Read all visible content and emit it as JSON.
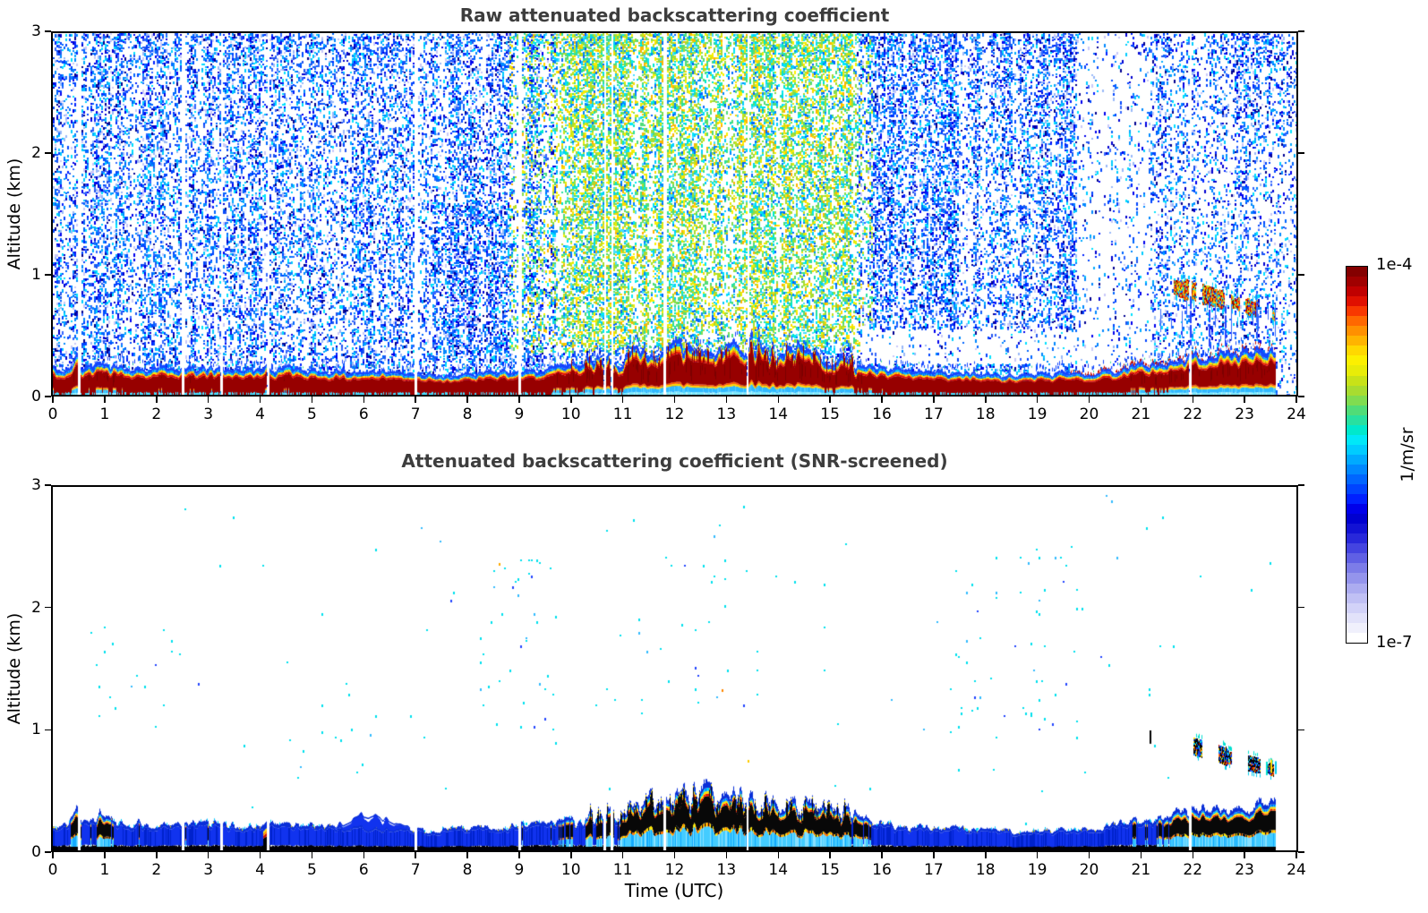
{
  "axes": {
    "x": {
      "label": "Time (UTC)",
      "ticks": [
        0,
        1,
        2,
        3,
        4,
        5,
        6,
        7,
        8,
        9,
        10,
        11,
        12,
        13,
        14,
        15,
        16,
        17,
        18,
        19,
        20,
        21,
        22,
        23,
        24
      ],
      "range": [
        0,
        24
      ]
    },
    "y": {
      "label": "Altitude (km)",
      "ticks": [
        0,
        1,
        2,
        3
      ],
      "range": [
        0,
        3
      ]
    }
  },
  "colorbar": {
    "top_label": "1e-4",
    "bottom_label": "1e-7",
    "unit": "1/m/sr",
    "scale": "log",
    "palette": [
      "#ffffff",
      "#f0f0fc",
      "#e2e2fa",
      "#d2d2f8",
      "#c0c0f4",
      "#acacf0",
      "#9494ec",
      "#7c7ce8",
      "#6060e4",
      "#4444e0",
      "#2828da",
      "#1212d4",
      "#0000d0",
      "#0000ea",
      "#0020ff",
      "#0044ff",
      "#0066ff",
      "#0088ff",
      "#00aaff",
      "#00ccff",
      "#00e8f8",
      "#00e8cc",
      "#28e0a0",
      "#50dc78",
      "#80dc50",
      "#a8dc30",
      "#c8e218",
      "#e8ec08",
      "#fcf000",
      "#ffd800",
      "#ffb400",
      "#ff9000",
      "#ff6800",
      "#f83800",
      "#e01000",
      "#c00000",
      "#a00000",
      "#840000"
    ]
  },
  "chart_data": [
    {
      "type": "heatmap",
      "title": "Raw attenuated backscattering coefficient",
      "xlabel": "Time (UTC)",
      "ylabel": "Altitude (km)",
      "xlim": [
        0,
        24
      ],
      "ylim": [
        0,
        3
      ],
      "value_min": "1e-7",
      "value_max": "1e-4",
      "unit": "1/m/sr",
      "data_end_hour": 23.6,
      "gap_hours": [
        0.5,
        2.5,
        3.25,
        4.15,
        7.0,
        9.0,
        10.65,
        10.78,
        11.8,
        13.4,
        21.95
      ],
      "boundary_layer_top_km": {
        "hours": [
          0,
          0.3,
          0.6,
          1,
          1.5,
          2,
          2.5,
          3,
          3.5,
          4,
          4.5,
          5,
          5.5,
          6,
          6.5,
          7,
          7.5,
          8,
          8.5,
          9,
          9.5,
          10,
          10.5,
          11,
          11.5,
          12,
          12.5,
          13,
          13.3,
          13.6,
          14,
          14.5,
          15,
          15.5,
          16,
          16.5,
          17,
          17.5,
          18,
          18.5,
          19,
          19.5,
          20,
          20.5,
          21,
          21.5,
          22,
          22.5,
          23,
          23.6
        ],
        "values": [
          0.2,
          0.21,
          0.2,
          0.22,
          0.19,
          0.2,
          0.21,
          0.2,
          0.19,
          0.19,
          0.21,
          0.18,
          0.18,
          0.19,
          0.18,
          0.16,
          0.16,
          0.16,
          0.17,
          0.18,
          0.2,
          0.24,
          0.27,
          0.31,
          0.36,
          0.38,
          0.39,
          0.41,
          0.42,
          0.39,
          0.35,
          0.33,
          0.31,
          0.27,
          0.21,
          0.18,
          0.17,
          0.16,
          0.16,
          0.15,
          0.15,
          0.16,
          0.17,
          0.2,
          0.24,
          0.27,
          0.3,
          0.31,
          0.33,
          0.35
        ]
      },
      "bumps": [
        {
          "hour": 0.45,
          "amp_km": 0.1,
          "width_h": 0.07
        },
        {
          "hour": 0.9,
          "amp_km": 0.05,
          "width_h": 0.06
        },
        {
          "hour": 1.65,
          "amp_km": 0.035,
          "width_h": 0.05
        },
        {
          "hour": 4.1,
          "amp_km": 0.06,
          "width_h": 0.06
        },
        {
          "hour": 14.3,
          "amp_km": 0.03,
          "width_h": 0.05
        }
      ],
      "cloud_layer": {
        "start_hour": 21.3,
        "end_hour": 23.6,
        "center_alt_start_km": 0.95,
        "center_alt_end_km": 0.66,
        "thickness_km": 0.14,
        "virga_hours": [
          21.95,
          22.3,
          22.62
        ]
      },
      "noise_regions": [
        {
          "t": [
            0,
            24
          ],
          "a": [
            0,
            3
          ],
          "density": 0.42,
          "palette": "blue"
        },
        {
          "t": [
            7.3,
            9.8
          ],
          "a": [
            0.3,
            1.6
          ],
          "density": 0.6,
          "palette": "blue"
        },
        {
          "t": [
            8.8,
            16.3
          ],
          "a": [
            0.35,
            3
          ],
          "density": 0.5,
          "palette": "bluegreen"
        },
        {
          "t": [
            9.7,
            15.5
          ],
          "a": [
            0.4,
            3
          ],
          "density": 0.58,
          "palette": "green"
        },
        {
          "t": [
            15.8,
            19.7
          ],
          "a": [
            0.55,
            3
          ],
          "density": 0.46,
          "palette": "blue"
        },
        {
          "t": [
            15.6,
            21.2
          ],
          "a": [
            0.28,
            0.55
          ],
          "density": 0.1,
          "palette": "blue"
        },
        {
          "t": [
            19.75,
            21.15
          ],
          "a": [
            0,
            3
          ],
          "density": 0.1,
          "palette": "blue"
        },
        {
          "t": [
            21.15,
            24
          ],
          "a": [
            0,
            3
          ],
          "density": 0.25,
          "palette": "blue"
        },
        {
          "t": [
            22.8,
            24
          ],
          "a": [
            2.2,
            3
          ],
          "density": 0.4,
          "palette": "blue"
        }
      ]
    },
    {
      "type": "heatmap",
      "title": "Attenuated backscattering coefficient (SNR-screened)",
      "xlabel": "Time (UTC)",
      "ylabel": "Altitude (km)",
      "xlim": [
        0,
        24
      ],
      "ylim": [
        0,
        3
      ],
      "value_min": "1e-7",
      "value_max": "1e-4",
      "unit": "1/m/sr",
      "data_end_hour": 23.6,
      "gap_hours": [
        0.5,
        2.5,
        3.25,
        4.15,
        7.0,
        9.0,
        10.65,
        10.78,
        11.8,
        13.4,
        21.95
      ],
      "boundary_layer_top_km": {
        "hours": [
          0,
          0.3,
          0.6,
          1,
          1.5,
          2,
          2.5,
          3,
          3.5,
          4,
          4.5,
          5,
          5.5,
          6,
          6.5,
          7,
          7.5,
          8,
          8.5,
          9,
          9.5,
          10,
          10.5,
          11,
          11.5,
          12,
          12.5,
          13,
          13.3,
          13.6,
          14,
          14.5,
          15,
          15.5,
          16,
          16.5,
          17,
          17.5,
          18,
          18.5,
          19,
          19.5,
          20,
          20.5,
          21,
          21.5,
          22,
          22.5,
          23,
          23.6
        ],
        "values": [
          0.2,
          0.21,
          0.2,
          0.22,
          0.19,
          0.2,
          0.21,
          0.2,
          0.19,
          0.19,
          0.21,
          0.18,
          0.18,
          0.19,
          0.18,
          0.16,
          0.16,
          0.16,
          0.17,
          0.18,
          0.2,
          0.24,
          0.27,
          0.31,
          0.36,
          0.38,
          0.39,
          0.41,
          0.42,
          0.39,
          0.35,
          0.33,
          0.31,
          0.27,
          0.21,
          0.18,
          0.17,
          0.16,
          0.16,
          0.15,
          0.15,
          0.16,
          0.17,
          0.2,
          0.24,
          0.27,
          0.3,
          0.31,
          0.33,
          0.35
        ]
      },
      "bumps": [
        {
          "hour": 0.45,
          "amp_km": 0.1,
          "width_h": 0.07
        },
        {
          "hour": 0.9,
          "amp_km": 0.05,
          "width_h": 0.06
        },
        {
          "hour": 1.65,
          "amp_km": 0.035,
          "width_h": 0.05
        },
        {
          "hour": 4.1,
          "amp_km": 0.06,
          "width_h": 0.06
        }
      ],
      "blue_bump": {
        "hour": 6.15,
        "amp_km": 0.1,
        "width_h": 0.5
      },
      "cloud_layer": {
        "start_hour": 21.35,
        "end_hour": 23.6,
        "center_alt_start_km": 0.95,
        "center_alt_end_km": 0.66,
        "thickness_km": 0.12,
        "lone_mark_hour": 21.17,
        "lone_mark_alt_km": 0.94
      },
      "dot_regions": [
        {
          "t": [
            0,
            23.6
          ],
          "a": [
            0.1,
            3
          ],
          "density": 0.0006
        },
        {
          "t": [
            0.8,
            2.3
          ],
          "a": [
            1.0,
            1.95
          ],
          "density": 0.004
        },
        {
          "t": [
            5.4,
            7.2
          ],
          "a": [
            0.6,
            1.4
          ],
          "density": 0.003
        },
        {
          "t": [
            8.2,
            9.8
          ],
          "a": [
            0.8,
            2.45
          ],
          "density": 0.006
        },
        {
          "t": [
            10.3,
            13.6
          ],
          "a": [
            1.2,
            2.45
          ],
          "density": 0.0025
        },
        {
          "t": [
            17.2,
            19.9
          ],
          "a": [
            0.9,
            2.55
          ],
          "density": 0.006
        },
        {
          "t": [
            20.9,
            21.35
          ],
          "a": [
            0.8,
            1.6
          ],
          "density": 0.004
        }
      ],
      "isolated_warm_dots": [
        {
          "hour": 8.6,
          "alt_km": 2.37,
          "color": "#ffaa00"
        },
        {
          "hour": 12.9,
          "alt_km": 1.33,
          "color": "#ff8800"
        },
        {
          "hour": 13.4,
          "alt_km": 0.75,
          "color": "#ffcc00"
        }
      ]
    }
  ]
}
